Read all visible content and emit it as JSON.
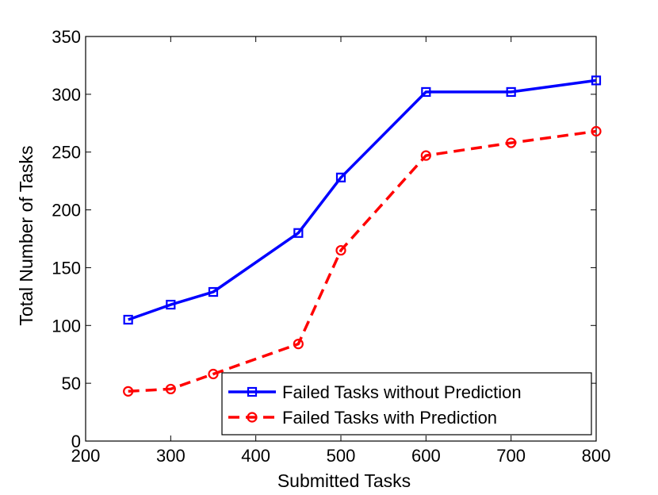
{
  "chart_data": {
    "type": "line",
    "title": "",
    "xlabel": "Submitted Tasks",
    "ylabel": "Total Number of Tasks",
    "xlim": [
      200,
      800
    ],
    "ylim": [
      0,
      350
    ],
    "xticks": [
      200,
      300,
      400,
      500,
      600,
      700,
      800
    ],
    "yticks": [
      0,
      50,
      100,
      150,
      200,
      250,
      300,
      350
    ],
    "x": [
      250,
      300,
      350,
      450,
      500,
      600,
      700,
      800
    ],
    "grid": false,
    "legend_position": "bottom-right",
    "series": [
      {
        "name": "Failed Tasks without Prediction",
        "values": [
          105,
          118,
          129,
          180,
          228,
          302,
          302,
          312
        ],
        "color": "#0000ff",
        "line_style": "solid",
        "marker": "square"
      },
      {
        "name": "Failed Tasks with Prediction",
        "values": [
          43,
          45,
          58,
          84,
          165,
          247,
          258,
          268
        ],
        "color": "#ff0000",
        "line_style": "dashed",
        "marker": "circle"
      }
    ]
  }
}
